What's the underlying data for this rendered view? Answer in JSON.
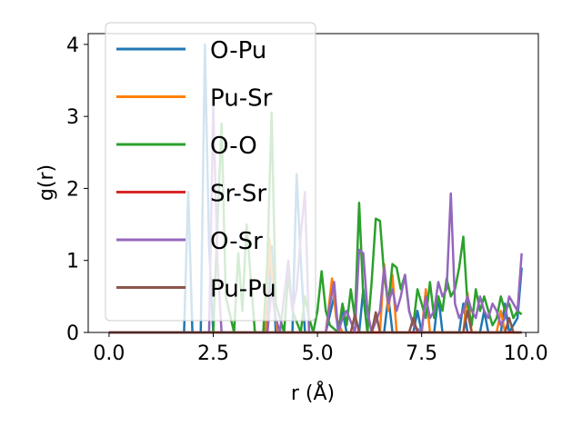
{
  "chart_data": {
    "type": "line",
    "title": "",
    "xlabel": "r (Å)",
    "ylabel": "g(r)",
    "xlim": [
      -0.5,
      10.3
    ],
    "ylim": [
      0,
      4.15
    ],
    "xticks": [
      0.0,
      2.5,
      5.0,
      7.5,
      10.0
    ],
    "xtick_labels": [
      "0.0",
      "2.5",
      "5.0",
      "7.5",
      "10.0"
    ],
    "yticks": [
      0,
      1,
      2,
      3,
      4
    ],
    "ytick_labels": [
      "0",
      "1",
      "2",
      "3",
      "4"
    ],
    "legend_position": "upper-left",
    "series": [
      {
        "name": "O-Pu",
        "color": "#1f77b4",
        "x": [
          0,
          1.8,
          1.85,
          1.9,
          2.0,
          2.1,
          2.2,
          2.3,
          2.4,
          2.5,
          3.8,
          3.9,
          4.0,
          4.4,
          4.5,
          4.6,
          4.7,
          5.2,
          5.4,
          5.5,
          5.6,
          5.7,
          6.0,
          6.1,
          6.2,
          6.6,
          6.7,
          6.8,
          7.3,
          7.4,
          7.5,
          7.8,
          7.9,
          8.0,
          8.4,
          8.5,
          8.6,
          8.9,
          9.0,
          9.1,
          9.4,
          9.5,
          9.6,
          9.8,
          9.9
        ],
        "y": [
          0,
          0,
          1.0,
          1.95,
          0,
          0,
          0,
          4.0,
          1.2,
          0,
          0,
          1.2,
          0,
          0,
          2.2,
          1.0,
          0,
          0,
          0.5,
          0,
          0.3,
          0,
          0,
          0.6,
          0,
          0,
          0.5,
          0,
          0,
          0.3,
          0,
          0,
          0.5,
          0,
          0,
          0.4,
          0,
          0,
          0.3,
          0,
          0,
          0.4,
          0,
          0.2,
          0.9
        ]
      },
      {
        "name": "Pu-Sr",
        "color": "#ff7f0e",
        "x": [
          0,
          3.75,
          3.85,
          3.95,
          4.05,
          5.2,
          5.35,
          5.45,
          5.6,
          6.5,
          6.6,
          6.7,
          6.8,
          6.9,
          7.5,
          7.6,
          7.7,
          8.5,
          8.6,
          8.7,
          9.3,
          9.4,
          9.5,
          9.9
        ],
        "y": [
          0,
          0,
          1.3,
          0.4,
          0,
          0,
          0.75,
          0.2,
          0,
          0,
          0.95,
          0.3,
          0.8,
          0,
          0,
          0.6,
          0,
          0,
          0.55,
          0,
          0,
          0.3,
          0,
          0
        ]
      },
      {
        "name": "O-O",
        "color": "#2ca02c",
        "x": [
          0,
          2.5,
          2.6,
          2.7,
          2.8,
          3.0,
          3.1,
          3.2,
          3.3,
          3.5,
          3.7,
          3.8,
          3.9,
          4.0,
          4.2,
          4.3,
          4.4,
          4.6,
          4.7,
          4.8,
          4.9,
          5.0,
          5.1,
          5.2,
          5.3,
          5.5,
          5.6,
          5.7,
          5.8,
          5.9,
          6.0,
          6.1,
          6.2,
          6.3,
          6.4,
          6.5,
          6.6,
          6.7,
          6.8,
          6.9,
          7.0,
          7.1,
          7.2,
          7.3,
          7.4,
          7.5,
          7.6,
          7.7,
          7.8,
          7.9,
          8.0,
          8.1,
          8.2,
          8.3,
          8.4,
          8.5,
          8.6,
          8.7,
          8.8,
          8.9,
          9.0,
          9.1,
          9.2,
          9.3,
          9.4,
          9.5,
          9.6,
          9.7,
          9.8,
          9.9
        ],
        "y": [
          0,
          0,
          1.5,
          2.9,
          0.5,
          0,
          1.1,
          0.3,
          1.5,
          0,
          0,
          1.0,
          3.05,
          0.4,
          0,
          0.8,
          0.3,
          0,
          0.5,
          0.2,
          0,
          0.3,
          0.85,
          0.3,
          0.1,
          0,
          0.4,
          0.1,
          0.6,
          0.2,
          1.8,
          0.5,
          0,
          0.7,
          1.58,
          1.55,
          0.8,
          0.4,
          0.95,
          0.9,
          0.6,
          0.8,
          0.3,
          0.1,
          0.6,
          0.4,
          0.2,
          0.7,
          0.2,
          0.5,
          0.3,
          0.75,
          0.5,
          0.6,
          0.9,
          1.33,
          0.4,
          0.1,
          0.6,
          0.3,
          0.5,
          0.3,
          0.1,
          0.2,
          0.5,
          0.3,
          0.4,
          0.2,
          0.3,
          0.25
        ]
      },
      {
        "name": "Sr-Sr",
        "color": "#d62728",
        "x": [
          0,
          9.9
        ],
        "y": [
          0,
          0
        ]
      },
      {
        "name": "O-Sr",
        "color": "#9467bd",
        "x": [
          0,
          2.4,
          2.5,
          2.6,
          2.7,
          3.8,
          3.9,
          4.0,
          4.1,
          4.2,
          4.3,
          4.4,
          4.5,
          4.6,
          4.7,
          4.8,
          5.2,
          5.3,
          5.4,
          5.5,
          5.6,
          5.7,
          5.9,
          6.0,
          6.1,
          6.2,
          6.3,
          6.5,
          6.6,
          6.7,
          6.8,
          6.9,
          7.0,
          7.1,
          7.2,
          7.3,
          7.5,
          7.6,
          7.7,
          7.8,
          7.9,
          8.0,
          8.1,
          8.2,
          8.3,
          8.4,
          8.5,
          8.6,
          8.7,
          8.8,
          8.9,
          9.0,
          9.1,
          9.2,
          9.3,
          9.4,
          9.5,
          9.6,
          9.7,
          9.8,
          9.9
        ],
        "y": [
          0,
          0,
          3.15,
          1.0,
          0,
          0,
          0.6,
          0.2,
          0,
          0.5,
          1.0,
          0.3,
          0.6,
          1.35,
          1.95,
          0,
          0,
          0.4,
          0.7,
          0,
          0.2,
          0.3,
          0,
          1.15,
          1.1,
          0.3,
          0,
          0.3,
          0.9,
          0.4,
          0.6,
          0.3,
          0.5,
          0.8,
          0.3,
          0.1,
          0,
          0.5,
          0.2,
          0.3,
          0.7,
          0.5,
          0.6,
          1.93,
          0.4,
          0.2,
          0.3,
          0.5,
          0.3,
          0.2,
          0.5,
          0.3,
          0.2,
          0.4,
          0.3,
          0.1,
          0.2,
          0.5,
          0.4,
          0.3,
          1.1
        ]
      },
      {
        "name": "Pu-Pu",
        "color": "#8c564b",
        "x": [
          0,
          5.8,
          5.9,
          6.0,
          6.3,
          6.4,
          6.5,
          7.2,
          7.3,
          7.4,
          8.5,
          8.6,
          8.7,
          9.5,
          9.6,
          9.7,
          9.9
        ],
        "y": [
          0,
          0,
          0.25,
          0,
          0,
          0.28,
          0,
          0,
          0.2,
          0,
          0,
          0.3,
          0,
          0,
          0.2,
          0,
          0
        ]
      }
    ]
  }
}
